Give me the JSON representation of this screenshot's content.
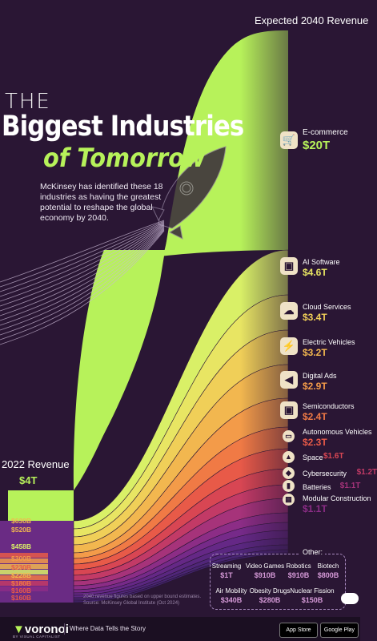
{
  "header": {
    "expected_label": "Expected 2040 Revenue"
  },
  "title": {
    "the": "THE",
    "main": "Biggest Industries",
    "sub": "of Tomorrow"
  },
  "description": "McKinsey has identified these 18 industries as having the greatest potential to reshape the global economy by 2040.",
  "revenue_2022": {
    "label": "2022 Revenue",
    "value": "$4T"
  },
  "colors": {
    "background": "#2a1634",
    "lime": "#b7f25a",
    "flows": [
      "#d9f067",
      "#e8e563",
      "#f0cf58",
      "#f2b74f",
      "#f39b49",
      "#f07a45",
      "#e85a48",
      "#d84653",
      "#c23a66",
      "#a6337a",
      "#8c2d86",
      "#762a89",
      "#652886",
      "#5a2780",
      "#502679",
      "#482572",
      "#41236b"
    ]
  },
  "industries": [
    {
      "name": "E-commerce",
      "value": "$20T",
      "icon": "cart-icon"
    },
    {
      "name": "AI Software",
      "value": "$4.6T",
      "icon": "chip-icon"
    },
    {
      "name": "Cloud Services",
      "value": "$3.4T",
      "icon": "cloud-icon"
    },
    {
      "name": "Electric Vehicles",
      "value": "$3.2T",
      "icon": "bolt-icon"
    },
    {
      "name": "Digital Ads",
      "value": "$2.9T",
      "icon": "megaphone-icon"
    },
    {
      "name": "Semiconductors",
      "value": "$2.4T",
      "icon": "chip-icon"
    },
    {
      "name": "Autonomous Vehicles",
      "value": "$2.3T",
      "icon": "car-icon"
    },
    {
      "name": "Space",
      "value": "$1.6T",
      "icon": "rocket-icon"
    },
    {
      "name": "Cybersecurity",
      "value": "$1.2T",
      "icon": "shield-icon"
    },
    {
      "name": "Batteries",
      "value": "$1.1T",
      "icon": "battery-icon"
    },
    {
      "name": "Modular Construction",
      "value": "$1.1T",
      "icon": "building-icon"
    }
  ],
  "labels_2022": [
    "$630B",
    "$520B",
    "$458B",
    "$300B",
    "$230B",
    "$228B",
    "$180B",
    "$160B",
    "$160B"
  ],
  "other": {
    "title": "Other:",
    "items": [
      {
        "name": "Streaming",
        "value": "$1T"
      },
      {
        "name": "Video Games",
        "value": "$910B"
      },
      {
        "name": "Robotics",
        "value": "$910B"
      },
      {
        "name": "Biotech",
        "value": "$800B"
      },
      {
        "name": "Air Mobility",
        "value": "$340B"
      },
      {
        "name": "Obesity Drugs",
        "value": "$280B"
      },
      {
        "name": "Nuclear Fission",
        "value": "$150B"
      }
    ]
  },
  "source": {
    "line1": "2040 revenue figures based on upper bound estimates.",
    "line2": "Source: McKinsey Global Institute (Oct 2024)"
  },
  "footer": {
    "brand": "voronoi",
    "brand_sub": "BY VISUAL CAPITALIST",
    "tagline": "Where Data Tells the Story",
    "app_store": "App Store",
    "google_play": "Google Play"
  },
  "chart_data": {
    "type": "area",
    "title": "The Biggest Industries of Tomorrow",
    "xlabel": "",
    "ylabel": "",
    "x": [
      "2022 Revenue",
      "Expected 2040 Revenue"
    ],
    "total_2022": "$4T",
    "series": [
      {
        "name": "E-commerce",
        "values": [
          4000,
          20000
        ]
      },
      {
        "name": "AI Software",
        "values": [
          null,
          4600
        ]
      },
      {
        "name": "Cloud Services",
        "values": [
          null,
          3400
        ]
      },
      {
        "name": "Electric Vehicles",
        "values": [
          null,
          3200
        ]
      },
      {
        "name": "Digital Ads",
        "values": [
          null,
          2900
        ]
      },
      {
        "name": "Semiconductors",
        "values": [
          null,
          2400
        ]
      },
      {
        "name": "Autonomous Vehicles",
        "values": [
          null,
          2300
        ]
      },
      {
        "name": "Space",
        "values": [
          null,
          1600
        ]
      },
      {
        "name": "Cybersecurity",
        "values": [
          null,
          1200
        ]
      },
      {
        "name": "Batteries",
        "values": [
          null,
          1100
        ]
      },
      {
        "name": "Modular Construction",
        "values": [
          null,
          1100
        ]
      },
      {
        "name": "Streaming",
        "values": [
          null,
          1000
        ]
      },
      {
        "name": "Video Games",
        "values": [
          null,
          910
        ]
      },
      {
        "name": "Robotics",
        "values": [
          null,
          910
        ]
      },
      {
        "name": "Biotech",
        "values": [
          null,
          800
        ]
      },
      {
        "name": "Air Mobility",
        "values": [
          null,
          340
        ]
      },
      {
        "name": "Obesity Drugs",
        "values": [
          null,
          280
        ]
      },
      {
        "name": "Nuclear Fission",
        "values": [
          null,
          150
        ]
      }
    ],
    "values_2022_labels": [
      630,
      520,
      458,
      300,
      230,
      228,
      180,
      160,
      160
    ],
    "units": "billions USD"
  }
}
